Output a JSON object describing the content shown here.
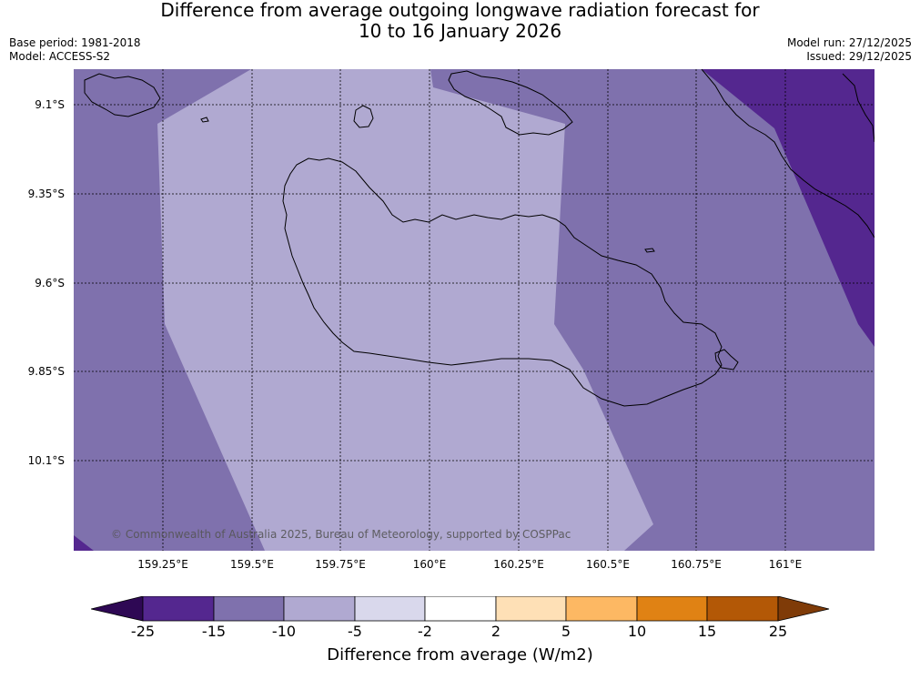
{
  "title_line1": "Difference from average outgoing longwave radiation forecast for",
  "title_line2": "10 to 16 January 2026",
  "base_period": "Base period: 1981-2018",
  "model": "Model: ACCESS-S2",
  "model_run": "Model run: 27/12/2025",
  "issued": "Issued: 29/12/2025",
  "copyright": "© Commonwealth of Australia 2025, Bureau of Meteorology, supported by COSPPac",
  "lat_labels": [
    "9.1°S",
    "9.35°S",
    "9.6°S",
    "9.85°S",
    "10.1°S"
  ],
  "lon_labels": [
    "159.25°E",
    "159.5°E",
    "159.75°E",
    "160°E",
    "160.25°E",
    "160.5°E",
    "160.75°E",
    "161°E"
  ],
  "colorbar": {
    "label": "Difference from average (W/m2)",
    "ticks": [
      "-25",
      "-15",
      "-10",
      "-5",
      "-2",
      "2",
      "5",
      "10",
      "15",
      "25"
    ],
    "colors": [
      "#2e0854",
      "#54278f",
      "#7f71ad",
      "#b0a9d1",
      "#d9d8ec",
      "#ffffff",
      "#fee0b6",
      "#fdb863",
      "#e08214",
      "#b35806",
      "#7f3b08"
    ]
  },
  "map_colors": {
    "band_minus_15": "#54278f",
    "band_minus_10": "#7f71ad",
    "band_minus_5": "#b0a9d1"
  }
}
